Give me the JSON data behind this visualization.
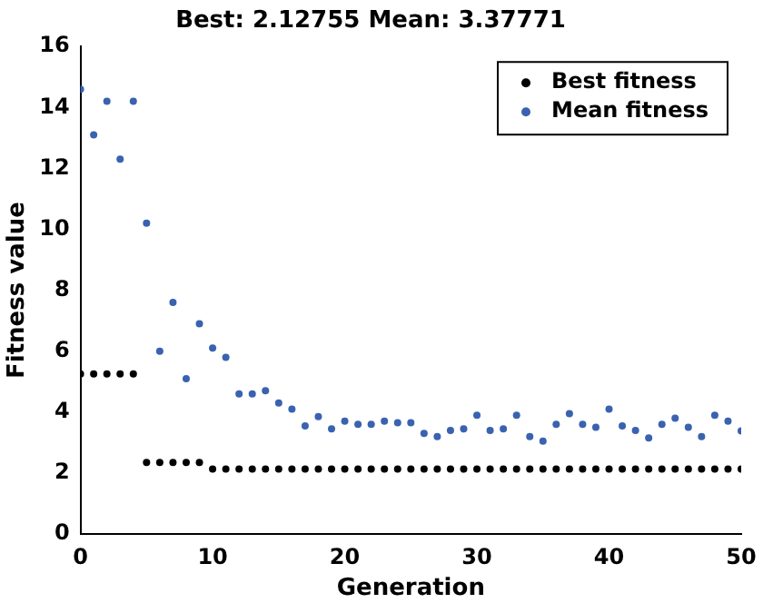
{
  "chart_data": {
    "type": "scatter",
    "title": "Best: 2.12755 Mean: 3.37771",
    "xlabel": "Generation",
    "ylabel": "Fitness value",
    "x": [
      0,
      1,
      2,
      3,
      4,
      5,
      6,
      7,
      8,
      9,
      10,
      11,
      12,
      13,
      14,
      15,
      16,
      17,
      18,
      19,
      20,
      21,
      22,
      23,
      24,
      25,
      26,
      27,
      28,
      29,
      30,
      31,
      32,
      33,
      34,
      35,
      36,
      37,
      38,
      39,
      40,
      41,
      42,
      43,
      44,
      45,
      46,
      47,
      48,
      49,
      50
    ],
    "series": [
      {
        "name": "Best fitness",
        "color": "#000000",
        "values": [
          5.25,
          5.25,
          5.25,
          5.25,
          5.25,
          2.35,
          2.35,
          2.35,
          2.35,
          2.35,
          2.13,
          2.13,
          2.13,
          2.13,
          2.13,
          2.13,
          2.13,
          2.13,
          2.13,
          2.13,
          2.13,
          2.13,
          2.13,
          2.13,
          2.13,
          2.13,
          2.13,
          2.13,
          2.13,
          2.13,
          2.13,
          2.13,
          2.13,
          2.13,
          2.13,
          2.13,
          2.13,
          2.13,
          2.13,
          2.13,
          2.13,
          2.13,
          2.13,
          2.13,
          2.13,
          2.13,
          2.13,
          2.13,
          2.13,
          2.13,
          2.13
        ]
      },
      {
        "name": "Mean fitness",
        "color": "#3a62b0",
        "values": [
          14.6,
          13.1,
          14.2,
          12.3,
          14.2,
          10.2,
          6.0,
          7.6,
          5.1,
          6.9,
          6.1,
          5.8,
          4.6,
          4.6,
          4.7,
          4.3,
          4.1,
          3.55,
          3.85,
          3.45,
          3.7,
          3.6,
          3.6,
          3.7,
          3.65,
          3.65,
          3.3,
          3.2,
          3.4,
          3.45,
          3.9,
          3.4,
          3.45,
          3.9,
          3.2,
          3.05,
          3.6,
          3.95,
          3.6,
          3.5,
          4.1,
          3.55,
          3.4,
          3.15,
          3.6,
          3.8,
          3.5,
          3.2,
          3.9,
          3.7,
          3.38
        ]
      }
    ],
    "xlim": [
      0,
      50
    ],
    "xticks": [
      0,
      10,
      20,
      30,
      40,
      50
    ],
    "ylim": [
      0,
      16
    ],
    "yticks": [
      0,
      2,
      4,
      6,
      8,
      10,
      12,
      14,
      16
    ],
    "grid": false,
    "legend": "top right",
    "marker": "circle"
  }
}
